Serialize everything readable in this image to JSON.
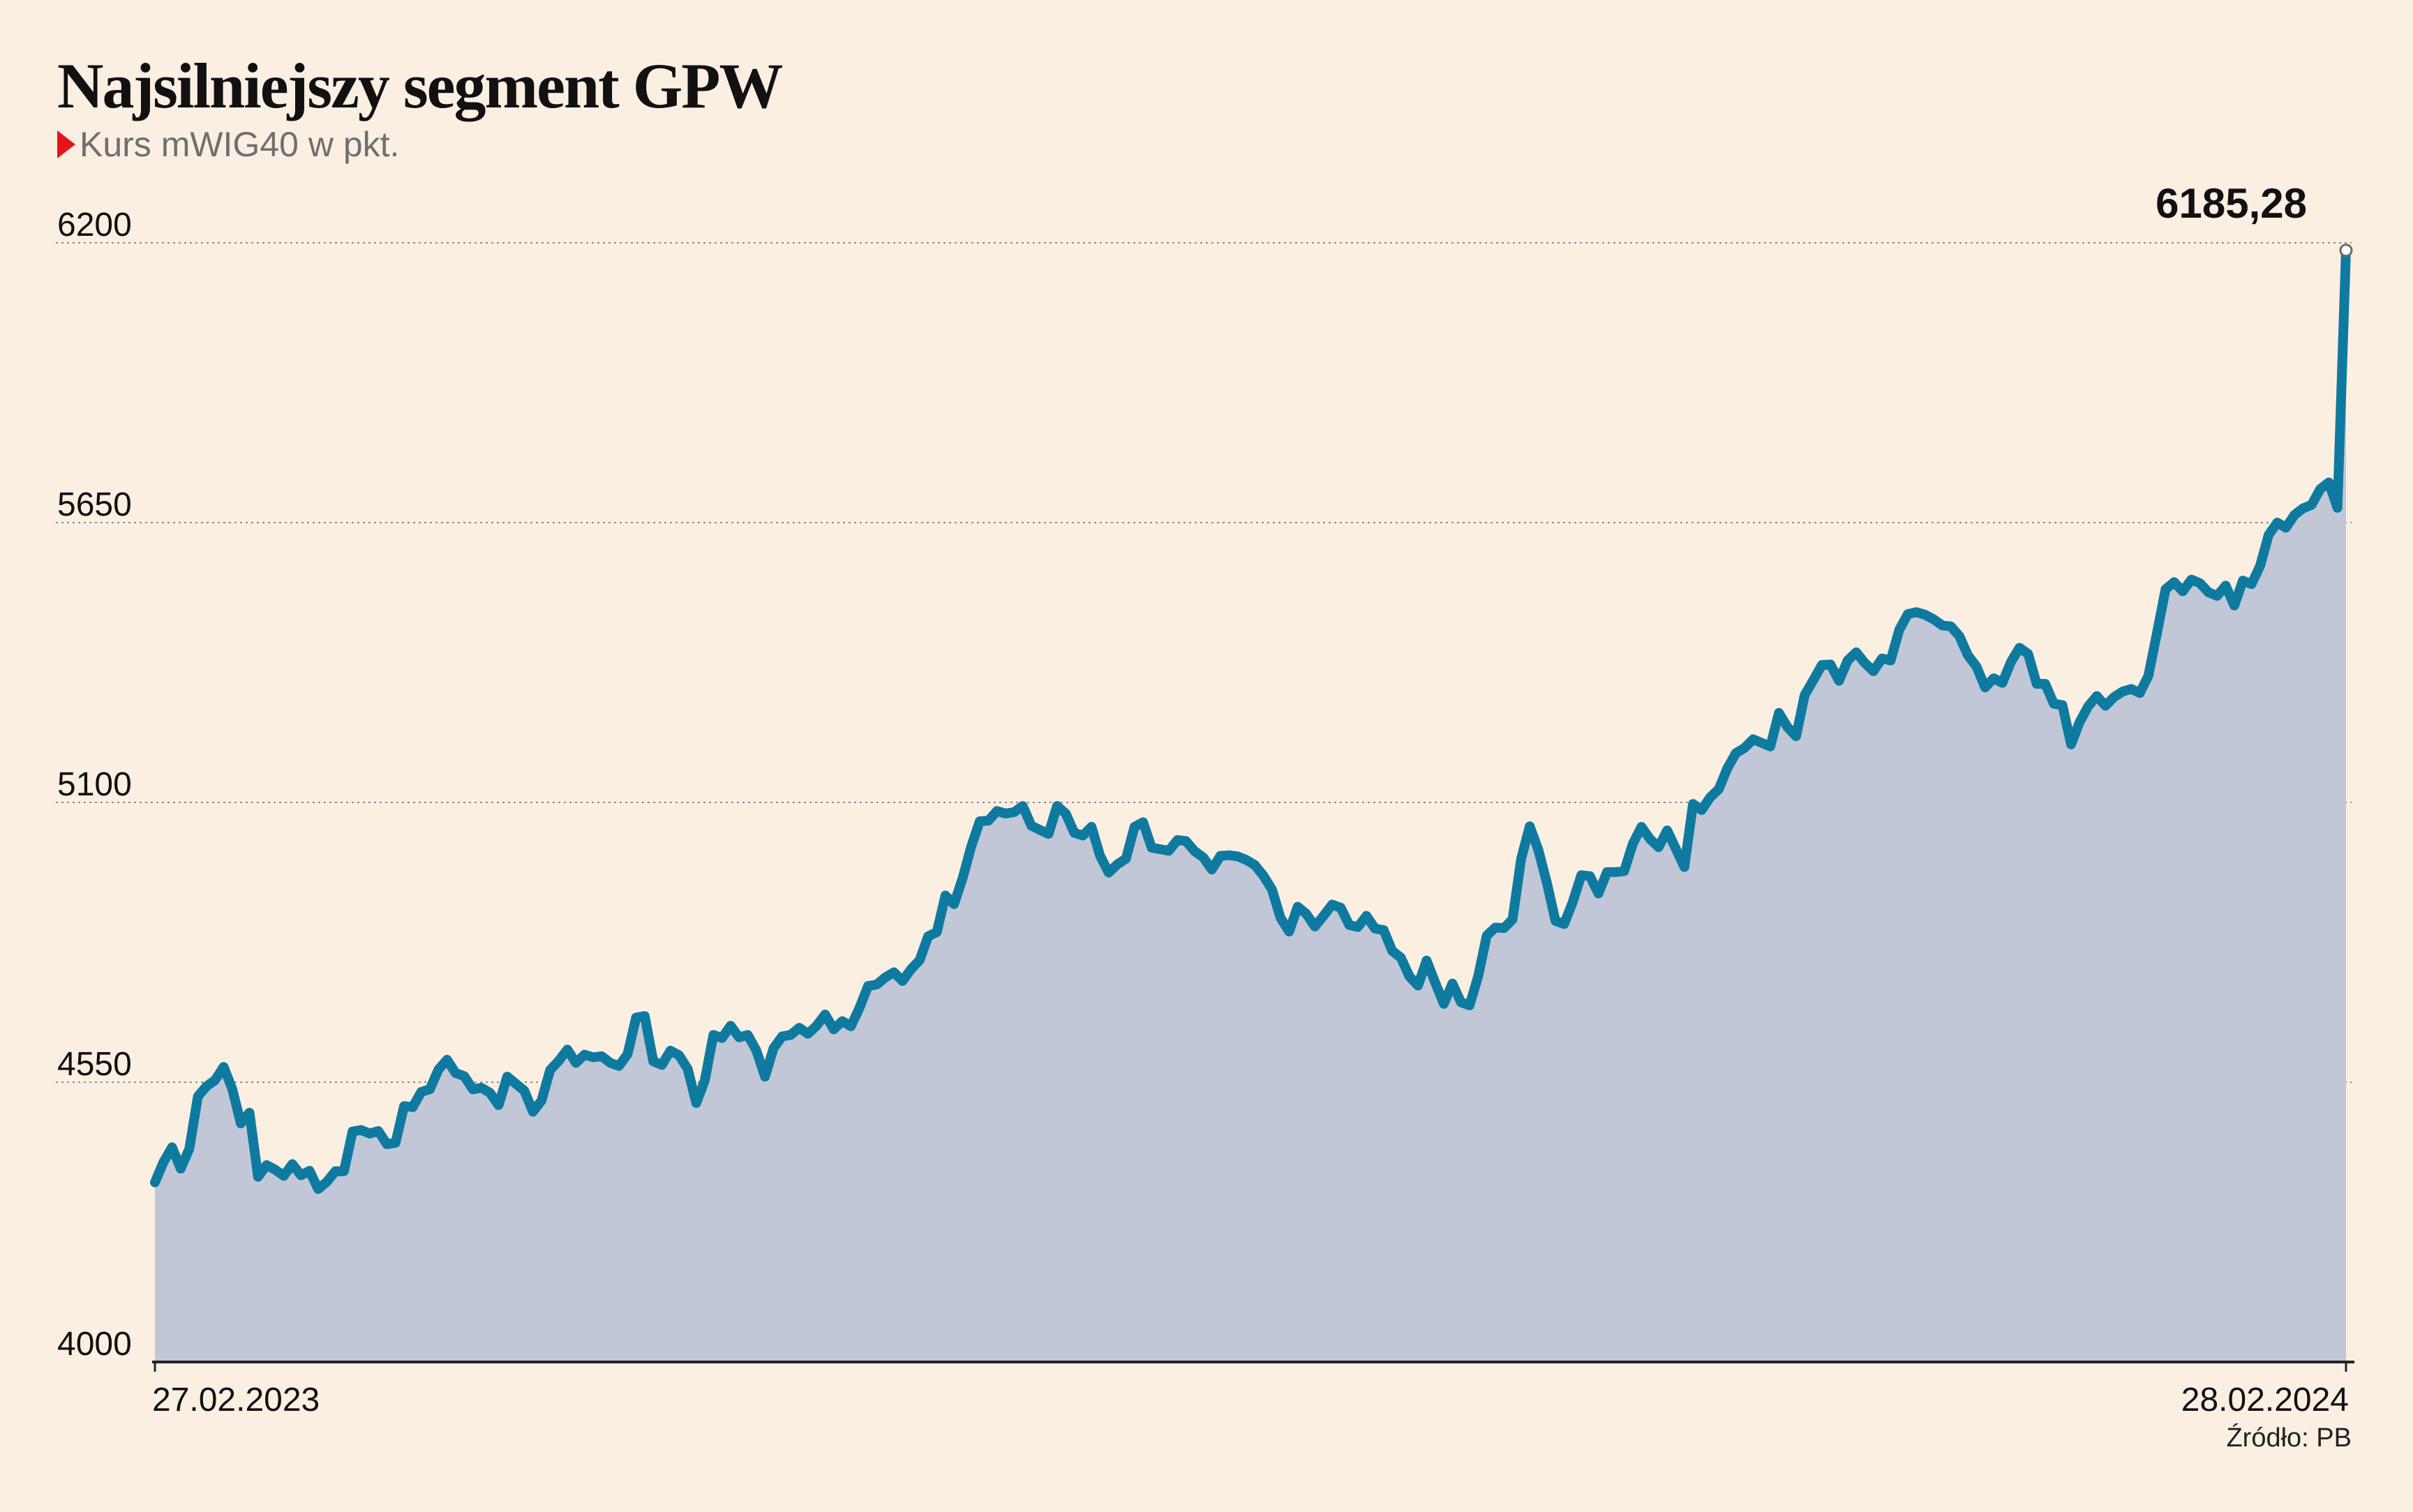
{
  "title": "Najsilniejszy segment GPW",
  "subtitle": "Kurs mWIG40 w pkt.",
  "source": "Źródło: PB",
  "colors": {
    "background": "#fbefe2",
    "line": "#0f7aa0",
    "area": "#c1c7d6",
    "marker": "#e3141c"
  },
  "chart_data": {
    "type": "area",
    "x_start_label": "27.02.2023",
    "x_end_label": "28.02.2024",
    "ylim": [
      4000,
      6200
    ],
    "yticks": [
      4000,
      4550,
      5100,
      5650,
      6200
    ],
    "grid": true,
    "last_value_label": "6185,28",
    "series": [
      {
        "values": [
          4353,
          4393,
          4422,
          4380,
          4419,
          4522,
          4542,
          4554,
          4580,
          4537,
          4469,
          4490,
          4364,
          4387,
          4378,
          4366,
          4389,
          4367,
          4376,
          4340,
          4354,
          4375,
          4375,
          4453,
          4456,
          4449,
          4454,
          4428,
          4431,
          4503,
          4501,
          4531,
          4536,
          4575,
          4594,
          4568,
          4562,
          4536,
          4539,
          4529,
          4505,
          4561,
          4547,
          4533,
          4492,
          4514,
          4574,
          4592,
          4614,
          4588,
          4604,
          4599,
          4601,
          4588,
          4582,
          4605,
          4677,
          4680,
          4591,
          4584,
          4612,
          4603,
          4576,
          4509,
          4554,
          4643,
          4637,
          4661,
          4638,
          4643,
          4612,
          4561,
          4617,
          4640,
          4643,
          4657,
          4645,
          4661,
          4683,
          4654,
          4670,
          4660,
          4696,
          4739,
          4742,
          4756,
          4766,
          4749,
          4772,
          4790,
          4837,
          4845,
          4917,
          4900,
          4951,
          5013,
          5063,
          5064,
          5083,
          5078,
          5081,
          5093,
          5054,
          5046,
          5038,
          5093,
          5078,
          5040,
          5035,
          5052,
          4995,
          4962,
          4978,
          4989,
          5052,
          5061,
          5011,
          5008,
          5005,
          5026,
          5024,
          5004,
          4992,
          4968,
          4995,
          4996,
          4994,
          4987,
          4977,
          4956,
          4929,
          4873,
          4846,
          4895,
          4881,
          4856,
          4877,
          4899,
          4893,
          4859,
          4855,
          4877,
          4852,
          4849,
          4808,
          4795,
          4758,
          4740,
          4789,
          4746,
          4704,
          4744,
          4707,
          4701,
          4758,
          4838,
          4854,
          4853,
          4870,
          4989,
          5053,
          5007,
          4942,
          4867,
          4861,
          4904,
          4957,
          4955,
          4921,
          4963,
          4963,
          4965,
          5019,
          5052,
          5028,
          5012,
          5045,
          5009,
          4973,
          5097,
          5085,
          5110,
          5126,
          5167,
          5197,
          5207,
          5224,
          5217,
          5210,
          5276,
          5248,
          5230,
          5311,
          5340,
          5370,
          5371,
          5339,
          5379,
          5395,
          5374,
          5358,
          5383,
          5379,
          5439,
          5470,
          5474,
          5469,
          5460,
          5448,
          5446,
          5427,
          5389,
          5367,
          5326,
          5344,
          5335,
          5376,
          5404,
          5392,
          5333,
          5333,
          5294,
          5291,
          5214,
          5258,
          5289,
          5309,
          5290,
          5307,
          5318,
          5323,
          5315,
          5349,
          5433,
          5519,
          5533,
          5515,
          5538,
          5531,
          5513,
          5506,
          5526,
          5487,
          5536,
          5529,
          5565,
          5626,
          5650,
          5640,
          5665,
          5678,
          5685,
          5716,
          5729,
          5679,
          6185.28
        ]
      }
    ]
  }
}
